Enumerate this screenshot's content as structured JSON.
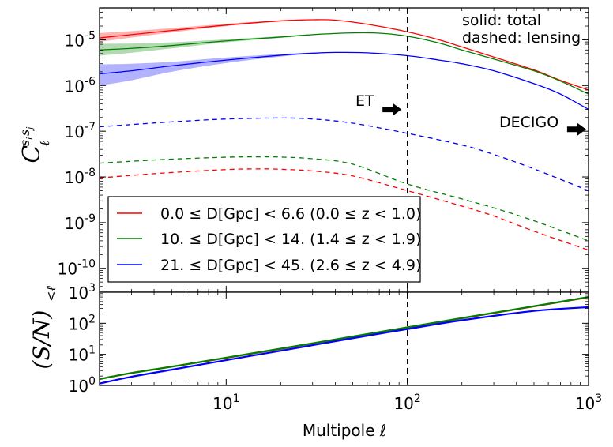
{
  "chart_data": [
    {
      "type": "line",
      "panel": "top",
      "xscale": "log",
      "yscale": "log",
      "xlim": [
        2,
        1000
      ],
      "ylim": [
        3e-11,
        5e-05
      ],
      "ylabel": "C_ℓ^{s_i s_j}",
      "yticks": [
        {
          "value": 1e-05,
          "base": "10",
          "exp": "-5"
        },
        {
          "value": 1e-06,
          "base": "10",
          "exp": "-6"
        },
        {
          "value": 1e-07,
          "base": "10",
          "exp": "-7"
        },
        {
          "value": 1e-08,
          "base": "10",
          "exp": "-8"
        },
        {
          "value": 1e-09,
          "base": "10",
          "exp": "-9"
        },
        {
          "value": 1e-10,
          "base": "10",
          "exp": "-10"
        }
      ],
      "vline_x": 100,
      "annotations": {
        "solid_note": "solid: total",
        "dashed_note": "dashed: lensing",
        "et_label": "ET",
        "decigo_label": "DECIGO",
        "et_arrow_at": {
          "x": 90,
          "y": 3e-07
        },
        "decigo_arrow_at": {
          "x": 950,
          "y": 1.1e-07
        }
      },
      "legend": {
        "placement": "lower-left",
        "entries": [
          {
            "series": "red",
            "text": "0.0 ≤ D[Gpc] < 6.6 (0.0 ≤ z < 1.0)"
          },
          {
            "series": "green",
            "text": "10. ≤ D[Gpc] < 14. (1.4 ≤ z < 1.9)"
          },
          {
            "series": "blue",
            "text": "21. ≤ D[Gpc] < 45. (2.6 ≤ z < 4.9)"
          }
        ]
      },
      "series": [
        {
          "name": "red total",
          "color": "#ff0000",
          "style": "solid",
          "x": [
            2,
            3,
            5,
            10,
            20,
            30,
            40,
            60,
            100,
            150,
            200,
            300,
            500,
            700,
            1000
          ],
          "y": [
            1.1e-05,
            1.3e-05,
            1.6e-05,
            2.1e-05,
            2.6e-05,
            2.75e-05,
            2.7e-05,
            2.2e-05,
            1.5e-05,
            1e-05,
            7e-06,
            4.2e-06,
            2.2e-06,
            1.3e-06,
            8e-07
          ],
          "band_low": [
            9e-06,
            1.12e-05,
            1.45e-05,
            2e-05,
            2.55e-05,
            2.72e-05,
            2.68e-05,
            2.18e-05,
            1.49e-05,
            1e-05,
            7e-06,
            4.2e-06,
            2.2e-06,
            1.3e-06,
            8e-07
          ],
          "band_high": [
            1.4e-05,
            1.55e-05,
            1.8e-05,
            2.25e-05,
            2.68e-05,
            2.8e-05,
            2.73e-05,
            2.22e-05,
            1.51e-05,
            1e-05,
            7e-06,
            4.2e-06,
            2.2e-06,
            1.3e-06,
            8e-07
          ]
        },
        {
          "name": "green total",
          "color": "#008000",
          "style": "solid",
          "x": [
            2,
            3,
            5,
            10,
            20,
            30,
            50,
            70,
            100,
            150,
            200,
            300,
            500,
            700,
            1000
          ],
          "y": [
            6e-06,
            6.5e-06,
            7.5e-06,
            9.5e-06,
            1.15e-05,
            1.3e-05,
            1.42e-05,
            1.4e-05,
            1.2e-05,
            8.5e-06,
            6e-06,
            3.8e-06,
            2.1e-06,
            1.25e-06,
            6.5e-07
          ],
          "band_low": [
            4.5e-06,
            5.2e-06,
            6.5e-06,
            8.8e-06,
            1.1e-05,
            1.27e-05,
            1.41e-05,
            1.4e-05,
            1.2e-05,
            8.5e-06,
            6e-06,
            3.8e-06,
            2.1e-06,
            1.25e-06,
            6.5e-07
          ],
          "band_high": [
            8.2e-06,
            8.3e-06,
            8.8e-06,
            1.03e-05,
            1.2e-05,
            1.33e-05,
            1.43e-05,
            1.4e-05,
            1.2e-05,
            8.5e-06,
            6e-06,
            3.8e-06,
            2.1e-06,
            1.25e-06,
            6.5e-07
          ]
        },
        {
          "name": "blue total",
          "color": "#0000ff",
          "style": "solid",
          "x": [
            2,
            3,
            5,
            10,
            20,
            30,
            40,
            60,
            100,
            150,
            200,
            300,
            500,
            700,
            1000
          ],
          "y": [
            1.8e-06,
            2.1e-06,
            2.7e-06,
            3.6e-06,
            4.6e-06,
            5.1e-06,
            5.3e-06,
            5.2e-06,
            4.5e-06,
            3.6e-06,
            3e-06,
            2.1e-06,
            1.1e-06,
            6.5e-07,
            3e-07
          ],
          "band_low": [
            1e-06,
            1.3e-06,
            2e-06,
            3.1e-06,
            4.3e-06,
            4.95e-06,
            5.2e-06,
            5.2e-06,
            4.5e-06,
            3.6e-06,
            3e-06,
            2.1e-06,
            1.1e-06,
            6.5e-07,
            3e-07
          ],
          "band_high": [
            2.9e-06,
            3e-06,
            3.3e-06,
            4.1e-06,
            4.9e-06,
            5.25e-06,
            5.4e-06,
            5.25e-06,
            4.5e-06,
            3.6e-06,
            3e-06,
            2.1e-06,
            1.1e-06,
            6.5e-07,
            3e-07
          ]
        },
        {
          "name": "blue lensing",
          "color": "#0000ff",
          "style": "dashed",
          "x": [
            2,
            3,
            5,
            10,
            20,
            30,
            50,
            100,
            200,
            300,
            500,
            1000
          ],
          "y": [
            1.25e-07,
            1.4e-07,
            1.6e-07,
            1.85e-07,
            1.95e-07,
            1.85e-07,
            1.5e-07,
            9e-08,
            5e-08,
            3.1e-08,
            1.5e-08,
            5e-09
          ]
        },
        {
          "name": "green lensing",
          "color": "#008000",
          "style": "dashed",
          "x": [
            2,
            3,
            5,
            10,
            15,
            20,
            30,
            50,
            100,
            200,
            300,
            500,
            1000
          ],
          "y": [
            2e-08,
            2.2e-08,
            2.45e-08,
            2.7e-08,
            2.75e-08,
            2.72e-08,
            2.5e-08,
            1.9e-08,
            7e-09,
            3.3e-09,
            2.1e-09,
            1.1e-09,
            4e-10
          ]
        },
        {
          "name": "red lensing",
          "color": "#ff0000",
          "style": "dashed",
          "x": [
            2,
            3,
            5,
            10,
            15,
            20,
            30,
            50,
            100,
            200,
            300,
            500,
            1000
          ],
          "y": [
            9.5e-09,
            1.08e-08,
            1.25e-08,
            1.45e-08,
            1.5e-08,
            1.47e-08,
            1.35e-08,
            1.05e-08,
            5e-09,
            2.3e-09,
            1.4e-09,
            6.5e-10,
            2.5e-10
          ]
        }
      ]
    },
    {
      "type": "line",
      "panel": "bottom",
      "xscale": "log",
      "yscale": "log",
      "xlim": [
        2,
        1000
      ],
      "ylim": [
        1,
        1000
      ],
      "xlabel": "Multipole ℓ",
      "ylabel": "(S/N)_{<ℓ}",
      "xticks": [
        {
          "value": 10,
          "base": "10",
          "exp": "1"
        },
        {
          "value": 100,
          "base": "10",
          "exp": "2"
        },
        {
          "value": 1000,
          "base": "10",
          "exp": "3"
        }
      ],
      "yticks": [
        {
          "value": 1,
          "base": "10",
          "exp": "0"
        },
        {
          "value": 10,
          "base": "10",
          "exp": "1"
        },
        {
          "value": 100,
          "base": "10",
          "exp": "2"
        },
        {
          "value": 1000,
          "base": "10",
          "exp": "3"
        }
      ],
      "vline_x": 100,
      "series": [
        {
          "name": "red",
          "color": "#ff0000",
          "style": "solid",
          "x": [
            2,
            3,
            5,
            10,
            20,
            50,
            100,
            200,
            500,
            1000
          ],
          "y": [
            1.6,
            2.5,
            4.0,
            7.7,
            15,
            37,
            73,
            145,
            350,
            690
          ]
        },
        {
          "name": "green",
          "color": "#008000",
          "style": "solid",
          "x": [
            2,
            3,
            5,
            10,
            20,
            50,
            100,
            200,
            500,
            1000
          ],
          "y": [
            1.6,
            2.5,
            4.0,
            7.8,
            15.2,
            37.5,
            74,
            147,
            355,
            700
          ]
        },
        {
          "name": "blue",
          "color": "#0000ff",
          "style": "solid",
          "x": [
            2,
            3,
            5,
            10,
            20,
            50,
            100,
            200,
            500,
            1000
          ],
          "y": [
            1.15,
            1.9,
            3.2,
            6.5,
            13,
            33,
            65,
            125,
            250,
            330
          ]
        }
      ]
    }
  ]
}
